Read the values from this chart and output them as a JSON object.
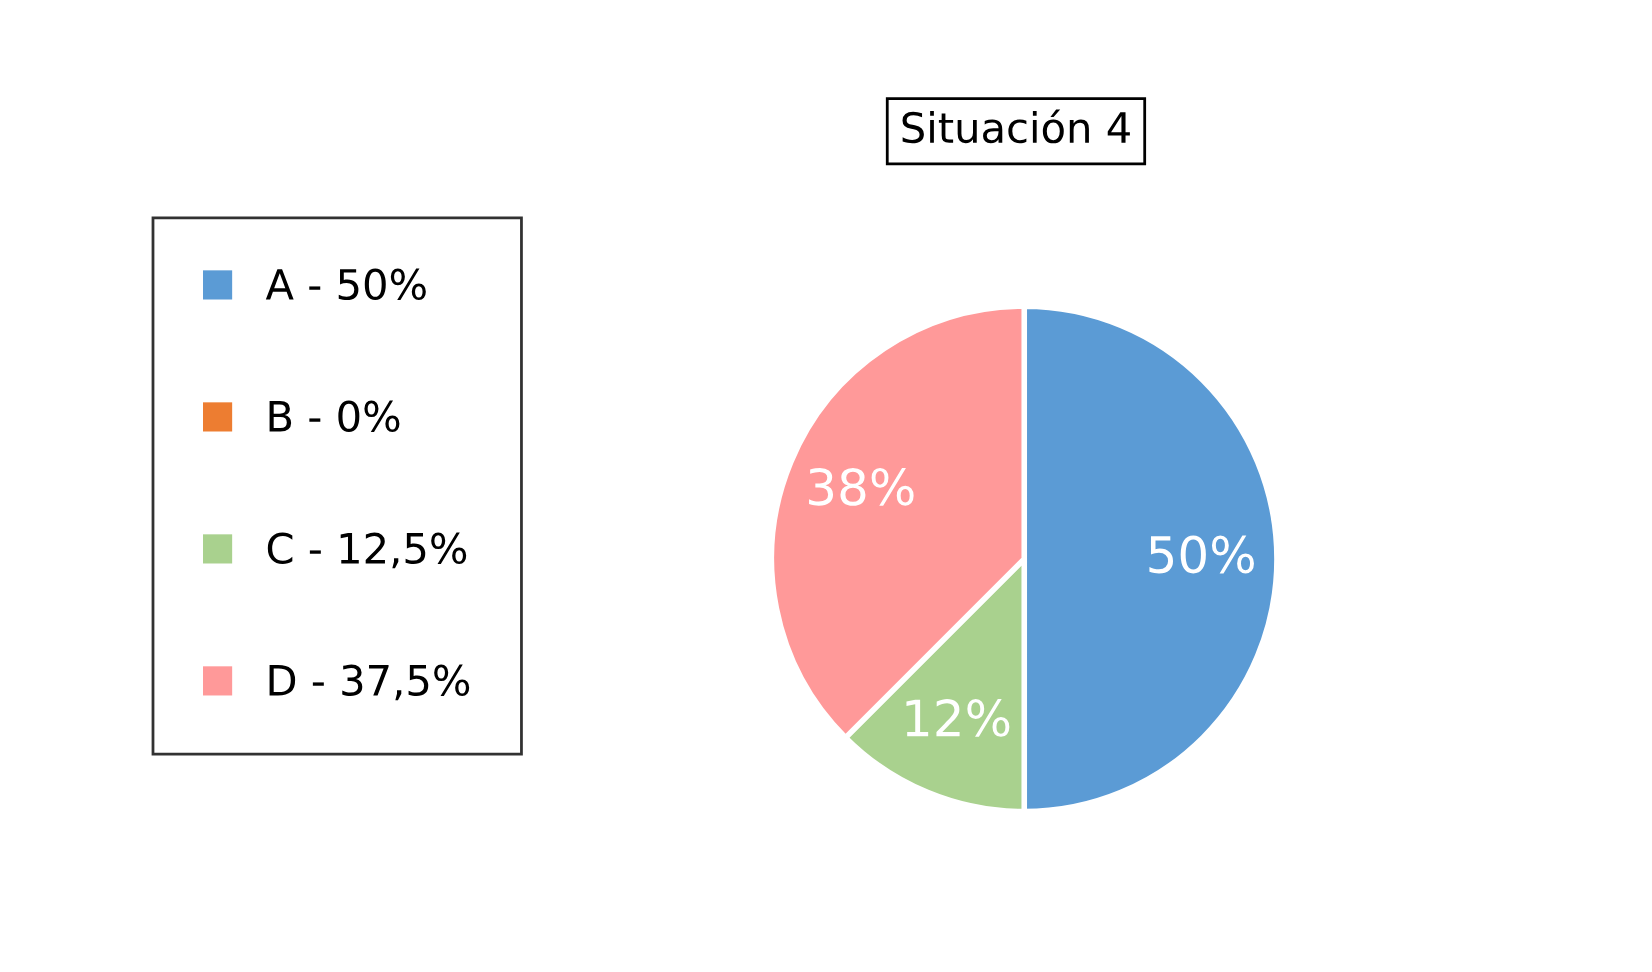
{
  "chart_data": {
    "type": "pie",
    "title": "Situación 4",
    "categories": [
      "A - 50%",
      "B - 0%",
      "C - 12,5%",
      "D - 37,5%"
    ],
    "values": [
      50,
      0,
      12.5,
      37.5
    ],
    "colors": [
      "#5b9bd5",
      "#ed7d31",
      "#a9d18e",
      "#ff9999"
    ],
    "value_labels": [
      "50%",
      null,
      "12%",
      "38%"
    ],
    "legend": "left"
  }
}
